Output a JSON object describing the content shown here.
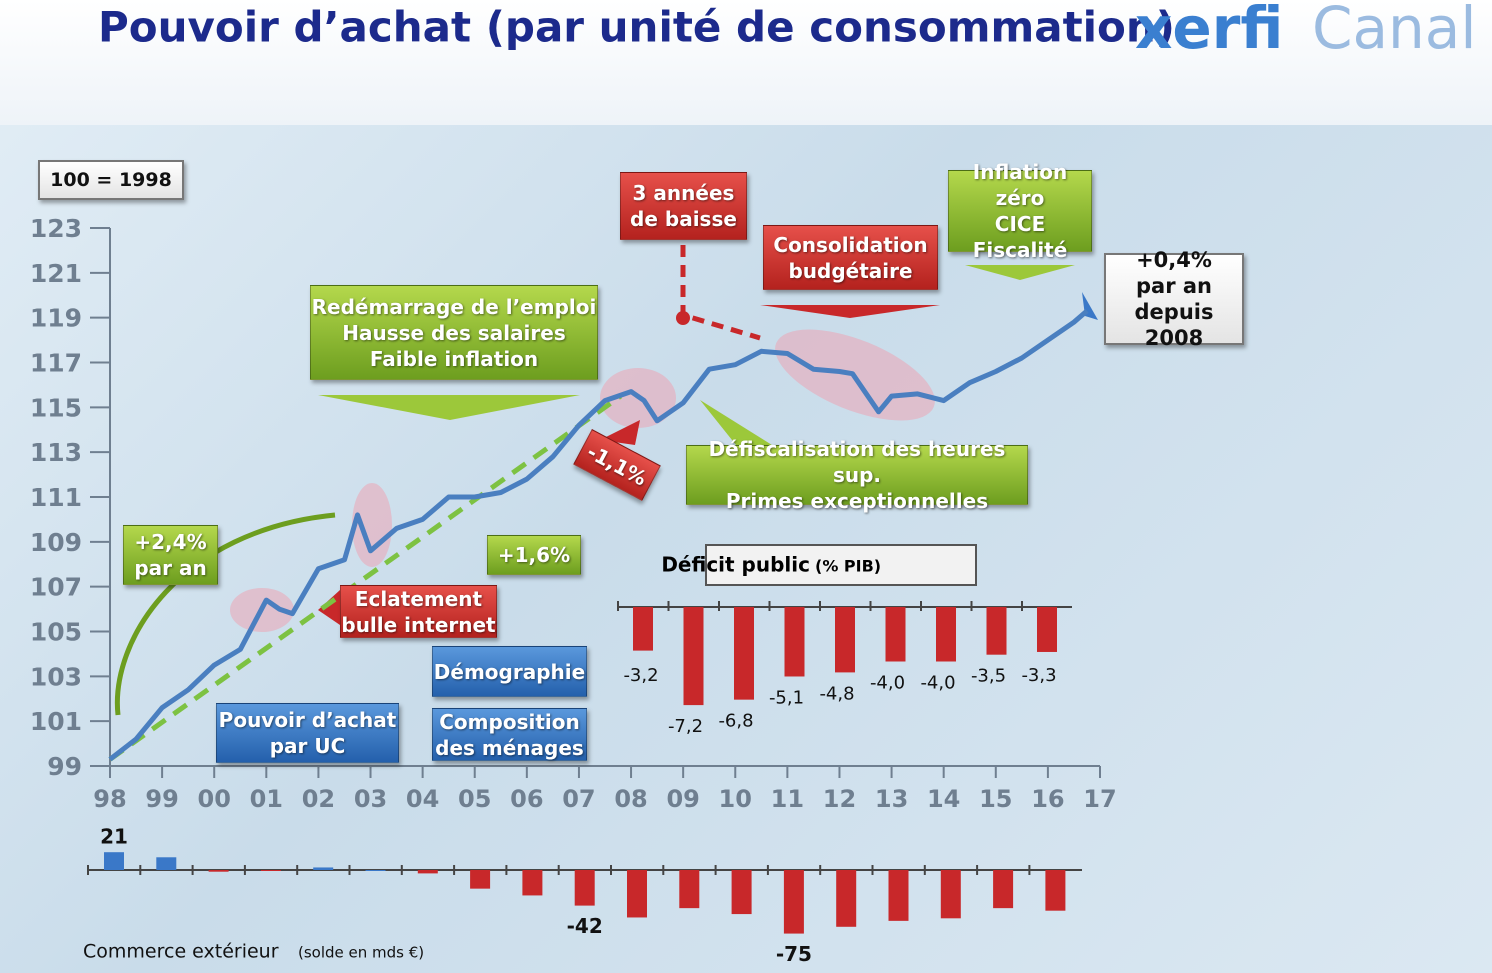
{
  "header": {
    "title": "Pouvoir d’achat (par unité de consommation)",
    "logo_left": "xerfi",
    "logo_right": "Canal"
  },
  "chart_data": [
    {
      "type": "line",
      "index_label": "100 = 1998",
      "color": "#4a7fc0",
      "x": [
        1998,
        1998.5,
        1999,
        1999.5,
        2000,
        2000.5,
        2001,
        2001.25,
        2001.5,
        2002,
        2002.5,
        2002.75,
        2003,
        2003.5,
        2004,
        2004.5,
        2005,
        2005.5,
        2006,
        2006.5,
        2007,
        2007.5,
        2008,
        2008.25,
        2008.5,
        2009,
        2009.5,
        2010,
        2010.5,
        2011,
        2011.5,
        2012,
        2012.25,
        2012.75,
        2013,
        2013.5,
        2014,
        2014.5,
        2015,
        2015.5,
        2016,
        2016.5,
        2016.75
      ],
      "values": [
        99.3,
        100.2,
        101.6,
        102.4,
        103.5,
        104.2,
        106.4,
        106.0,
        105.8,
        107.8,
        108.2,
        110.2,
        108.6,
        109.6,
        110.0,
        111.0,
        111.0,
        111.2,
        111.8,
        112.8,
        114.2,
        115.3,
        115.7,
        115.3,
        114.4,
        115.2,
        116.7,
        116.9,
        117.5,
        117.4,
        116.7,
        116.6,
        116.5,
        114.8,
        115.5,
        115.6,
        115.3,
        116.1,
        116.6,
        117.2,
        118.0,
        118.8,
        119.3
      ],
      "trend": {
        "x": [
          1998,
          2007.8
        ],
        "values": [
          99.3,
          115.5
        ],
        "color": "#7dc242"
      },
      "xlim": [
        1998,
        2017
      ],
      "xticks": [
        {
          "value": 1998,
          "label": "98"
        },
        {
          "value": 1999,
          "label": "99"
        },
        {
          "value": 2000,
          "label": "00"
        },
        {
          "value": 2001,
          "label": "01"
        },
        {
          "value": 2002,
          "label": "02"
        },
        {
          "value": 2003,
          "label": "03"
        },
        {
          "value": 2004,
          "label": "04"
        },
        {
          "value": 2005,
          "label": "05"
        },
        {
          "value": 2006,
          "label": "06"
        },
        {
          "value": 2007,
          "label": "07"
        },
        {
          "value": 2008,
          "label": "08"
        },
        {
          "value": 2009,
          "label": "09"
        },
        {
          "value": 2010,
          "label": "10"
        },
        {
          "value": 2011,
          "label": "11"
        },
        {
          "value": 2012,
          "label": "12"
        },
        {
          "value": 2013,
          "label": "13"
        },
        {
          "value": 2014,
          "label": "14"
        },
        {
          "value": 2015,
          "label": "15"
        },
        {
          "value": 2016,
          "label": "16"
        },
        {
          "value": 2017,
          "label": "17"
        }
      ],
      "ylim": [
        99,
        123
      ],
      "yticks": [
        99,
        101,
        103,
        105,
        107,
        109,
        111,
        113,
        115,
        117,
        119,
        121,
        123
      ],
      "annotations": [
        {
          "text": "+2,4%\npar an",
          "color": "green"
        },
        {
          "text": "Redémarrage de l’emploi\nHausse des salaires\nFaible inflation",
          "color": "green"
        },
        {
          "text": "+1,6%",
          "color": "green"
        },
        {
          "text": "Eclatement\nbulle internet",
          "color": "red"
        },
        {
          "text": "-1,1%",
          "color": "red"
        },
        {
          "text": "3 années\nde baisse",
          "color": "red"
        },
        {
          "text": "Consolidation\nbudgétaire",
          "color": "red"
        },
        {
          "text": "Inflation zéro\nCICE\nFiscalité",
          "color": "green"
        },
        {
          "text": "Défiscalisation des heures sup.\nPrimes exceptionnelles",
          "color": "green"
        },
        {
          "text": "+0,4%\npar an\ndepuis 2008",
          "color": "white"
        },
        {
          "text": "Pouvoir d’achat\npar UC",
          "color": "blue"
        },
        {
          "text": "Démographie",
          "color": "blue"
        },
        {
          "text": "Composition\ndes ménages",
          "color": "blue"
        }
      ]
    },
    {
      "type": "bar",
      "title": "Déficit public",
      "subtitle": "(% PIB)",
      "color": "#c8282a",
      "values": [
        -3.2,
        -7.2,
        -6.8,
        -5.1,
        -4.8,
        -4.0,
        -4.0,
        -3.5,
        -3.3
      ],
      "value_labels": [
        "-3,2",
        "-7,2",
        "-6,8",
        "-5,1",
        "-4,8",
        "-4,0",
        "-4,0",
        "-3,5",
        "-3,3"
      ],
      "ylim": [
        -8,
        0
      ]
    },
    {
      "type": "bar",
      "title": "Commerce extérieur",
      "subtitle": "(solde en mds €)",
      "positive_color": "#3a78c8",
      "negative_color": "#c8282a",
      "values": [
        21,
        15,
        -2,
        -1,
        3,
        0,
        -4,
        -22,
        -30,
        -42,
        -56,
        -45,
        -52,
        -75,
        -67,
        -60,
        -57,
        -45,
        -48
      ],
      "value_labels": [
        "21",
        null,
        null,
        null,
        null,
        null,
        null,
        null,
        null,
        "-42",
        null,
        null,
        null,
        "-75",
        null,
        null,
        null,
        null,
        null
      ],
      "ylim": [
        -80,
        25
      ]
    }
  ]
}
